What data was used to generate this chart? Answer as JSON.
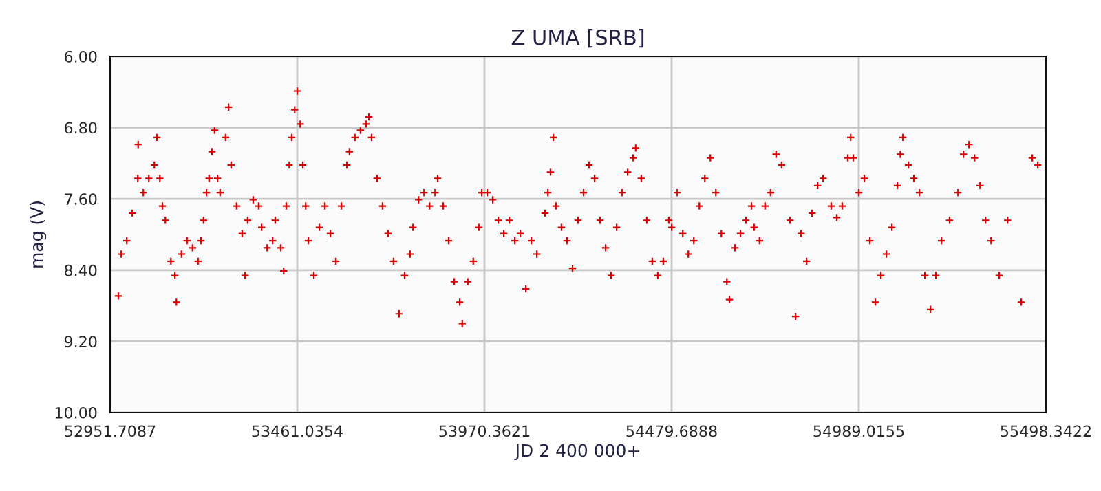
{
  "chart_data": {
    "type": "scatter",
    "title": "Z UMA [SRB]",
    "xlabel": "JD 2 400 000+",
    "ylabel": "mag (V)",
    "xlim": [
      52951.7087,
      55498.3422
    ],
    "xticks": [
      52951.7087,
      53461.0354,
      53970.3621,
      54479.6888,
      54989.0155,
      55498.3422
    ],
    "ylim": [
      10,
      6
    ],
    "yticks": [
      {
        "value": 6,
        "label": "6.00"
      },
      {
        "value": 6.8,
        "label": "6.80"
      },
      {
        "value": 7.6,
        "label": "7.60"
      },
      {
        "value": 8.4,
        "label": "8.40"
      },
      {
        "value": 9.2,
        "label": "9.20"
      },
      {
        "value": 10,
        "label": "10.00"
      }
    ],
    "grid": true,
    "marker": "cross",
    "series": [
      {
        "color": "#dd0000",
        "x": [
          52974,
          52982,
          52997,
          53012,
          53027,
          53028,
          53042,
          53057,
          53072,
          53079,
          53087,
          53094,
          53102,
          53117,
          53128,
          53132,
          53146,
          53161,
          53176,
          53191,
          53199,
          53206,
          53214,
          53221,
          53229,
          53236,
          53244,
          53251,
          53266,
          53274,
          53281,
          53296,
          53311,
          53319,
          53326,
          53341,
          53356,
          53364,
          53379,
          53394,
          53401,
          53416,
          53424,
          53431,
          53439,
          53446,
          53454,
          53461,
          53469,
          53476,
          53484,
          53491,
          53506,
          53521,
          53536,
          53551,
          53566,
          53581,
          53596,
          53603,
          53618,
          53633,
          53648,
          53656,
          53663,
          53678,
          53693,
          53708,
          53723,
          53738,
          53753,
          53768,
          53776,
          53791,
          53806,
          53821,
          53836,
          53843,
          53858,
          53873,
          53888,
          53903,
          53910,
          53925,
          53940,
          53955,
          53963,
          53978,
          53993,
          54008,
          54023,
          54038,
          54053,
          54068,
          54083,
          54098,
          54113,
          54135,
          54143,
          54150,
          54158,
          54165,
          54180,
          54195,
          54210,
          54225,
          54240,
          54255,
          54270,
          54285,
          54300,
          54315,
          54330,
          54345,
          54360,
          54375,
          54382,
          54397,
          54412,
          54427,
          54442,
          54457,
          54472,
          54480,
          54495,
          54510,
          54525,
          54540,
          54555,
          54570,
          54585,
          54600,
          54615,
          54630,
          54637,
          54652,
          54667,
          54682,
          54697,
          54704,
          54719,
          54734,
          54749,
          54764,
          54779,
          54802,
          54817,
          54832,
          54847,
          54862,
          54877,
          54892,
          54914,
          54929,
          54944,
          54959,
          54967,
          54974,
          54989,
          55004,
          55019,
          55034,
          55049,
          55064,
          55079,
          55094,
          55102,
          55109,
          55124,
          55139,
          55154,
          55169,
          55184,
          55199,
          55214,
          55236,
          55259,
          55274,
          55289,
          55304,
          55319,
          55334,
          55349,
          55371,
          55394,
          55431,
          55461,
          55476
        ],
        "values": [
          8.69,
          8.22,
          8.07,
          7.76,
          7.37,
          6.99,
          7.53,
          7.37,
          7.22,
          6.91,
          7.37,
          7.68,
          7.84,
          8.3,
          8.46,
          8.76,
          8.22,
          8.07,
          8.15,
          8.3,
          8.07,
          7.84,
          7.53,
          7.37,
          7.07,
          6.83,
          7.37,
          7.53,
          6.91,
          6.57,
          7.22,
          7.68,
          7.99,
          8.46,
          7.84,
          7.61,
          7.68,
          7.92,
          8.15,
          8.07,
          7.84,
          8.15,
          8.41,
          7.68,
          7.22,
          6.91,
          6.6,
          6.39,
          6.76,
          7.22,
          7.68,
          8.07,
          8.46,
          7.92,
          7.68,
          7.99,
          8.3,
          7.68,
          7.22,
          7.07,
          6.91,
          6.83,
          6.76,
          6.68,
          6.91,
          7.37,
          7.68,
          7.99,
          8.3,
          8.89,
          8.46,
          8.22,
          7.92,
          7.61,
          7.53,
          7.68,
          7.53,
          7.37,
          7.68,
          8.07,
          8.53,
          8.76,
          9.0,
          8.53,
          8.3,
          7.92,
          7.53,
          7.53,
          7.61,
          7.84,
          7.99,
          7.84,
          8.07,
          7.99,
          8.61,
          8.07,
          8.22,
          7.76,
          7.53,
          7.3,
          6.91,
          7.68,
          7.92,
          8.07,
          8.38,
          7.84,
          7.53,
          7.22,
          7.37,
          7.84,
          8.15,
          8.46,
          7.92,
          7.53,
          7.3,
          7.14,
          7.03,
          7.37,
          7.84,
          8.3,
          8.46,
          8.3,
          7.84,
          7.92,
          7.53,
          7.99,
          8.22,
          8.07,
          7.68,
          7.37,
          7.14,
          7.53,
          7.99,
          8.53,
          8.73,
          8.15,
          7.99,
          7.84,
          7.68,
          7.92,
          8.07,
          7.68,
          7.53,
          7.1,
          7.22,
          7.84,
          8.92,
          7.99,
          8.3,
          7.76,
          7.45,
          7.37,
          7.68,
          7.81,
          7.68,
          7.14,
          6.91,
          7.14,
          7.53,
          7.37,
          8.07,
          8.76,
          8.46,
          8.22,
          7.92,
          7.45,
          7.1,
          6.91,
          7.22,
          7.37,
          7.53,
          8.46,
          8.84,
          8.46,
          8.07,
          7.84,
          7.53,
          7.1,
          6.99,
          7.14,
          7.45,
          7.84,
          8.07,
          8.46,
          7.84,
          8.76,
          7.14,
          7.22
        ]
      }
    ]
  }
}
